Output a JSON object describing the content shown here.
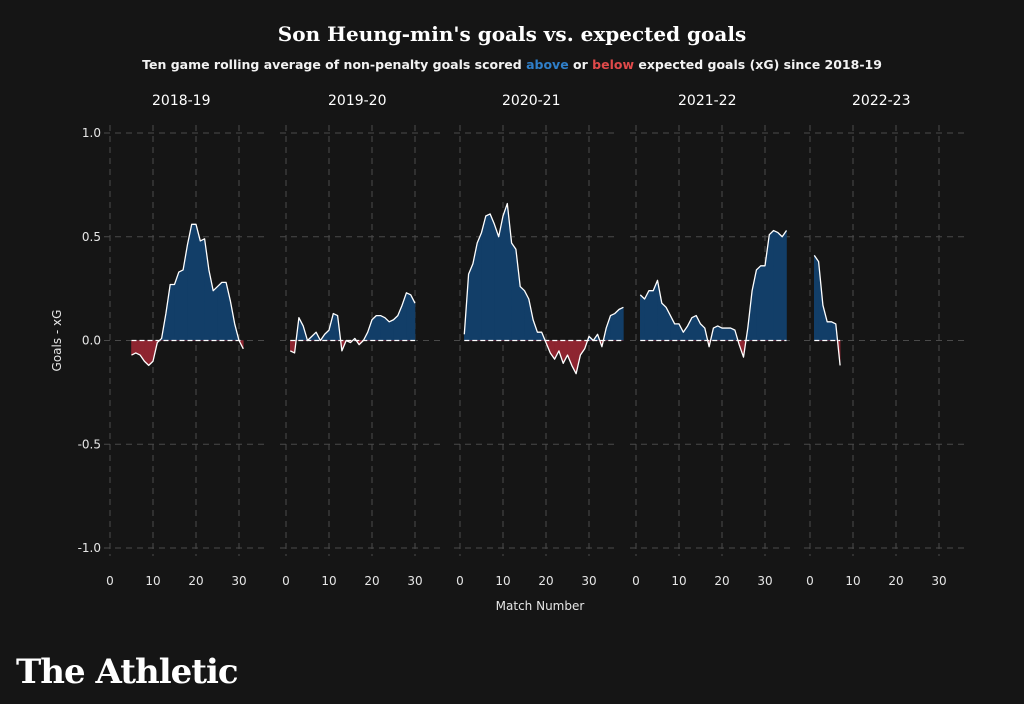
{
  "title": "Son Heung-min's goals vs. expected goals",
  "subtitle": {
    "prefix": "Ten game rolling average of non-penalty goals scored",
    "above": "above",
    "or": "or",
    "below": "below",
    "suffix": "expected goals (xG) since 2018-19"
  },
  "logo": "The Athletic",
  "colors": {
    "background": "#151515",
    "above": "#123e68",
    "below": "#8e2530",
    "line": "#ffffff",
    "grid": "#4a4a4a",
    "above_text": "#2f7fc9",
    "below_text": "#e04a4a"
  },
  "chart_data": {
    "type": "area",
    "xlabel": "Match Number",
    "ylabel": "Goals - xG",
    "ylim": [
      -1.0,
      1.0
    ],
    "yticks": [
      1.0,
      0.5,
      0.0,
      -0.5,
      -1.0
    ],
    "ytick_labels": [
      "1.0",
      "0.5",
      "0.0",
      "-0.5",
      "-1.0"
    ],
    "xlim": [
      0,
      35
    ],
    "xticks": [
      0,
      10,
      20,
      30
    ],
    "grid": true,
    "panels": [
      {
        "name": "2018-19",
        "points": [
          [
            5,
            -0.07
          ],
          [
            6,
            -0.06
          ],
          [
            7,
            -0.07
          ],
          [
            8,
            -0.1
          ],
          [
            9,
            -0.12
          ],
          [
            10,
            -0.1
          ],
          [
            11,
            -0.01
          ],
          [
            12,
            0.01
          ],
          [
            13,
            0.13
          ],
          [
            14,
            0.27
          ],
          [
            15,
            0.27
          ],
          [
            16,
            0.33
          ],
          [
            17,
            0.34
          ],
          [
            18,
            0.46
          ],
          [
            19,
            0.56
          ],
          [
            20,
            0.56
          ],
          [
            21,
            0.48
          ],
          [
            22,
            0.49
          ],
          [
            23,
            0.34
          ],
          [
            24,
            0.24
          ],
          [
            25,
            0.26
          ],
          [
            26,
            0.28
          ],
          [
            27,
            0.28
          ],
          [
            28,
            0.19
          ],
          [
            29,
            0.08
          ],
          [
            30,
            0.0
          ],
          [
            31,
            -0.04
          ]
        ]
      },
      {
        "name": "2019-20",
        "points": [
          [
            1,
            -0.05
          ],
          [
            2,
            -0.06
          ],
          [
            3,
            0.11
          ],
          [
            4,
            0.07
          ],
          [
            5,
            0.0
          ],
          [
            6,
            0.02
          ],
          [
            7,
            0.04
          ],
          [
            8,
            0.0
          ],
          [
            9,
            0.03
          ],
          [
            10,
            0.05
          ],
          [
            11,
            0.13
          ],
          [
            12,
            0.12
          ],
          [
            13,
            -0.05
          ],
          [
            14,
            0.0
          ],
          [
            15,
            -0.01
          ],
          [
            16,
            0.01
          ],
          [
            17,
            -0.02
          ],
          [
            18,
            0.0
          ],
          [
            19,
            0.04
          ],
          [
            20,
            0.1
          ],
          [
            21,
            0.12
          ],
          [
            22,
            0.12
          ],
          [
            23,
            0.11
          ],
          [
            24,
            0.09
          ],
          [
            25,
            0.1
          ],
          [
            26,
            0.12
          ],
          [
            27,
            0.17
          ],
          [
            28,
            0.23
          ],
          [
            29,
            0.22
          ],
          [
            30,
            0.18
          ]
        ]
      },
      {
        "name": "2020-21",
        "points": [
          [
            1,
            0.03
          ],
          [
            2,
            0.32
          ],
          [
            3,
            0.37
          ],
          [
            4,
            0.47
          ],
          [
            5,
            0.52
          ],
          [
            6,
            0.6
          ],
          [
            7,
            0.61
          ],
          [
            8,
            0.56
          ],
          [
            9,
            0.5
          ],
          [
            10,
            0.6
          ],
          [
            11,
            0.66
          ],
          [
            12,
            0.47
          ],
          [
            13,
            0.44
          ],
          [
            14,
            0.26
          ],
          [
            15,
            0.24
          ],
          [
            16,
            0.2
          ],
          [
            17,
            0.1
          ],
          [
            18,
            0.04
          ],
          [
            19,
            0.04
          ],
          [
            20,
            -0.01
          ],
          [
            21,
            -0.06
          ],
          [
            22,
            -0.09
          ],
          [
            23,
            -0.05
          ],
          [
            24,
            -0.11
          ],
          [
            25,
            -0.07
          ],
          [
            26,
            -0.12
          ],
          [
            27,
            -0.16
          ],
          [
            28,
            -0.07
          ],
          [
            29,
            -0.04
          ],
          [
            30,
            0.02
          ],
          [
            31,
            0.0
          ],
          [
            32,
            0.03
          ],
          [
            33,
            -0.03
          ],
          [
            34,
            0.06
          ],
          [
            35,
            0.12
          ],
          [
            36,
            0.13
          ],
          [
            37,
            0.15
          ],
          [
            38,
            0.16
          ]
        ]
      },
      {
        "name": "2021-22",
        "points": [
          [
            1,
            0.22
          ],
          [
            2,
            0.2
          ],
          [
            3,
            0.24
          ],
          [
            4,
            0.24
          ],
          [
            5,
            0.29
          ],
          [
            6,
            0.18
          ],
          [
            7,
            0.16
          ],
          [
            8,
            0.12
          ],
          [
            9,
            0.08
          ],
          [
            10,
            0.08
          ],
          [
            11,
            0.04
          ],
          [
            12,
            0.07
          ],
          [
            13,
            0.11
          ],
          [
            14,
            0.12
          ],
          [
            15,
            0.08
          ],
          [
            16,
            0.06
          ],
          [
            17,
            -0.03
          ],
          [
            18,
            0.06
          ],
          [
            19,
            0.07
          ],
          [
            20,
            0.06
          ],
          [
            21,
            0.06
          ],
          [
            22,
            0.06
          ],
          [
            23,
            0.05
          ],
          [
            24,
            -0.02
          ],
          [
            25,
            -0.08
          ],
          [
            26,
            0.06
          ],
          [
            27,
            0.24
          ],
          [
            28,
            0.34
          ],
          [
            29,
            0.36
          ],
          [
            30,
            0.36
          ],
          [
            31,
            0.51
          ],
          [
            32,
            0.53
          ],
          [
            33,
            0.52
          ],
          [
            34,
            0.5
          ],
          [
            35,
            0.53
          ]
        ]
      },
      {
        "name": "2022-23",
        "points": [
          [
            1,
            0.41
          ],
          [
            2,
            0.38
          ],
          [
            3,
            0.17
          ],
          [
            4,
            0.09
          ],
          [
            5,
            0.09
          ],
          [
            6,
            0.08
          ],
          [
            7,
            -0.12
          ]
        ]
      }
    ]
  }
}
